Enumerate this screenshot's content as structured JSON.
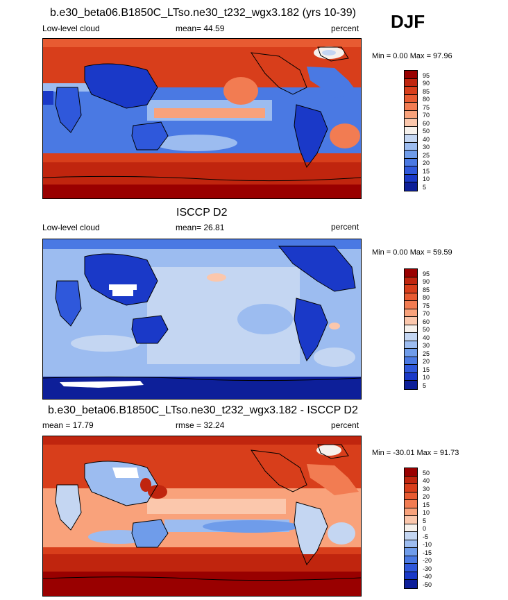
{
  "season": "DJF",
  "chart_data": [
    {
      "type": "heatmap",
      "title": "b.e30_beta06.B1850C_LTso.ne30_t232_wgx3.182 (yrs 10-39)",
      "left_label": "Low-level cloud",
      "center_label": "mean=  44.59",
      "right_label": "percent",
      "minmax": "Min =   0.00 Max =  97.96",
      "colorbar_levels": [
        "95",
        "90",
        "85",
        "80",
        "75",
        "70",
        "60",
        "50",
        "40",
        "30",
        "25",
        "20",
        "15",
        "10",
        "5"
      ],
      "colorbar_colors": [
        "#990000",
        "#c0250e",
        "#d83e1b",
        "#e85b32",
        "#f27c52",
        "#f9a27b",
        "#fbc7ac",
        "#f6f1ec",
        "#c4d6f2",
        "#9cbcf0",
        "#6f9cea",
        "#4a79e3",
        "#2f58db",
        "#1a39c8",
        "#0d1f99"
      ],
      "mean": 44.59,
      "min": 0.0,
      "max": 97.96,
      "units": "percent"
    },
    {
      "type": "heatmap",
      "title": "ISCCP D2",
      "left_label": "Low-level cloud",
      "center_label": "mean=  26.81",
      "right_label": "percent",
      "minmax": "Min =   0.00 Max =  59.59",
      "colorbar_levels": [
        "95",
        "90",
        "85",
        "80",
        "75",
        "70",
        "60",
        "50",
        "40",
        "30",
        "25",
        "20",
        "15",
        "10",
        "5"
      ],
      "colorbar_colors": [
        "#990000",
        "#c0250e",
        "#d83e1b",
        "#e85b32",
        "#f27c52",
        "#f9a27b",
        "#fbc7ac",
        "#f6f1ec",
        "#c4d6f2",
        "#9cbcf0",
        "#6f9cea",
        "#4a79e3",
        "#2f58db",
        "#1a39c8",
        "#0d1f99"
      ],
      "mean": 26.81,
      "min": 0.0,
      "max": 59.59,
      "units": "percent"
    },
    {
      "type": "heatmap",
      "title": "b.e30_beta06.B1850C_LTso.ne30_t232_wgx3.182 - ISCCP D2",
      "left_label": "mean =  17.79",
      "center_label": "rmse =  32.24",
      "right_label": "percent",
      "minmax": "Min = -30.01 Max =  91.73",
      "colorbar_levels": [
        "50",
        "40",
        "30",
        "20",
        "15",
        "10",
        "5",
        "0",
        "-5",
        "-10",
        "-15",
        "-20",
        "-30",
        "-40",
        "-50"
      ],
      "colorbar_colors": [
        "#990000",
        "#c0250e",
        "#d83e1b",
        "#e85b32",
        "#f27c52",
        "#f9a27b",
        "#fbc7ac",
        "#f6f1ec",
        "#c4d6f2",
        "#9cbcf0",
        "#6f9cea",
        "#4a79e3",
        "#2f58db",
        "#1a39c8",
        "#0d1f99"
      ],
      "mean": 17.79,
      "rmse": 32.24,
      "min": -30.01,
      "max": 91.73,
      "units": "percent"
    }
  ]
}
